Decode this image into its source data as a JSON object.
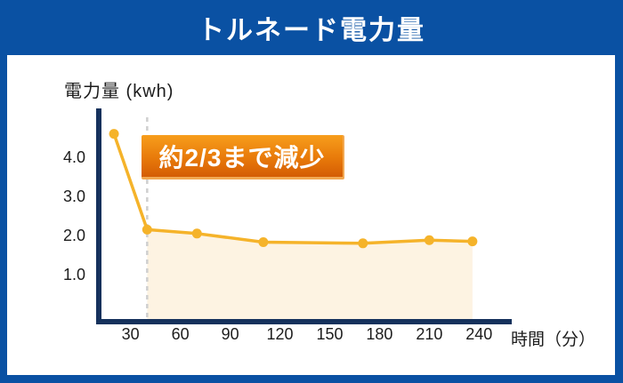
{
  "header": {
    "title": "トルネード電力量"
  },
  "chart_data": {
    "type": "line",
    "title": "トルネード電力量",
    "ylabel": "電力量 (kwh)",
    "xlabel": "時間（分）",
    "series": [
      {
        "name": "電力量",
        "x": [
          20,
          40,
          70,
          110,
          170,
          210,
          236
        ],
        "y": [
          4.6,
          2.15,
          2.05,
          1.83,
          1.8,
          1.88,
          1.85
        ]
      }
    ],
    "xticks": {
      "values": [
        30,
        60,
        90,
        120,
        150,
        180,
        210,
        240
      ],
      "labels": [
        "30",
        "60",
        "90",
        "120",
        "150",
        "180",
        "210",
        "240"
      ]
    },
    "yticks": {
      "values": [
        4,
        3,
        2,
        1
      ],
      "labels": [
        "4.0",
        "3.0",
        "2.0",
        "1.0"
      ]
    },
    "xlim": [
      0,
      255
    ],
    "ylim": [
      0,
      5.3
    ],
    "grid": false,
    "legend": "none",
    "area_fill": {
      "from_x": 40,
      "to_x": 236
    },
    "dashed_guide_x": 40,
    "annotation": {
      "label": "約2/3まで減少"
    }
  },
  "colors": {
    "frame_blue": "#0a51a3",
    "panel_bg": "#ffffff",
    "title_text": "#ffffff",
    "axis_navy": "#15315c",
    "line_yellow": "#f5b32a",
    "area_cream": "#fdf3e2",
    "guide_gray": "#cfcfcf",
    "tick_text": "#1c1c1c",
    "badge_top": "#f79e1c",
    "badge_mid": "#e87a0a",
    "badge_bottom": "#d45c04",
    "badge_edge": "#f2a851",
    "badge_text": "#ffffff"
  }
}
